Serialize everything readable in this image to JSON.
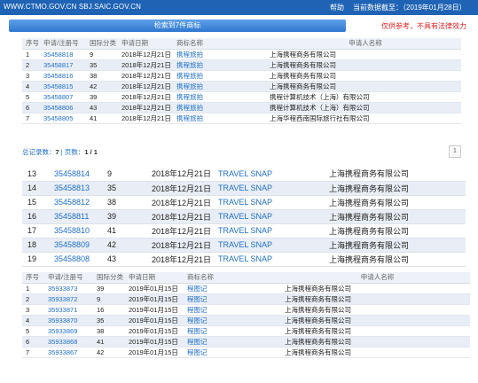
{
  "topbar": {
    "url": "WWW.CTMO.GOV.CN SBJ.SAIC.GOV.CN",
    "help": "帮助",
    "date": "当前数据截至：（2019年01月28日）"
  },
  "search_button": "检索到7件商标",
  "warning": "仅供参考，不具有法律效力",
  "table1": {
    "headers": [
      "序号",
      "申请/注册号",
      "国际分类",
      "申请日期",
      "商标名称",
      "申请人名称"
    ],
    "rows": [
      [
        "1",
        "35458818",
        "9",
        "2018年12月21日",
        "携程旅拍",
        "上海携程商务有限公司"
      ],
      [
        "2",
        "35458817",
        "35",
        "2018年12月21日",
        "携程旅拍",
        "上海携程商务有限公司"
      ],
      [
        "3",
        "35458816",
        "38",
        "2018年12月21日",
        "携程旅拍",
        "上海携程商务有限公司"
      ],
      [
        "4",
        "35458815",
        "42",
        "2018年12月21日",
        "携程旅拍",
        "上海携程商务有限公司"
      ],
      [
        "5",
        "35458807",
        "39",
        "2018年12月21日",
        "携程旅拍",
        "携程计算机技术（上海）有限公司"
      ],
      [
        "6",
        "35458806",
        "43",
        "2018年12月21日",
        "携程旅拍",
        "携程计算机技术（上海）有限公司"
      ],
      [
        "7",
        "35458805",
        "41",
        "2018年12月21日",
        "携程旅拍",
        "上海华程西南国际旅行社有限公司"
      ]
    ]
  },
  "summary": {
    "total_label": "总记录数：",
    "total": "7",
    "pages_label": "页数：",
    "pages": "1 / 1"
  },
  "pager": "1",
  "table2": {
    "rows": [
      [
        "13",
        "35458814",
        "9",
        "2018年12月21日",
        "TRAVEL SNAP",
        "上海携程商务有限公司"
      ],
      [
        "14",
        "35458813",
        "35",
        "2018年12月21日",
        "TRAVEL SNAP",
        "上海携程商务有限公司"
      ],
      [
        "15",
        "35458812",
        "38",
        "2018年12月21日",
        "TRAVEL SNAP",
        "上海携程商务有限公司"
      ],
      [
        "16",
        "35458811",
        "39",
        "2018年12月21日",
        "TRAVEL SNAP",
        "上海携程商务有限公司"
      ],
      [
        "17",
        "35458810",
        "41",
        "2018年12月21日",
        "TRAVEL SNAP",
        "上海携程商务有限公司"
      ],
      [
        "18",
        "35458809",
        "42",
        "2018年12月21日",
        "TRAVEL SNAP",
        "上海携程商务有限公司"
      ],
      [
        "19",
        "35458808",
        "43",
        "2018年12月21日",
        "TRAVEL SNAP",
        "上海携程商务有限公司"
      ]
    ]
  },
  "table3": {
    "headers": [
      "序号",
      "申请/注册号",
      "国际分类",
      "申请日期",
      "商标名称",
      "申请人名称"
    ],
    "rows": [
      [
        "1",
        "35933873",
        "39",
        "2019年01月15日",
        "程图记",
        "上海携程商务有限公司"
      ],
      [
        "2",
        "35933872",
        "9",
        "2019年01月15日",
        "程图记",
        "上海携程商务有限公司"
      ],
      [
        "3",
        "35933871",
        "16",
        "2019年01月15日",
        "程图记",
        "上海携程商务有限公司"
      ],
      [
        "4",
        "35933870",
        "35",
        "2019年01月15日",
        "程图记",
        "上海携程商务有限公司"
      ],
      [
        "5",
        "35933869",
        "38",
        "2019年01月15日",
        "程图记",
        "上海携程商务有限公司"
      ],
      [
        "6",
        "35933868",
        "41",
        "2019年01月15日",
        "程图记",
        "上海携程商务有限公司"
      ],
      [
        "7",
        "35933867",
        "42",
        "2019年01月15日",
        "程图记",
        "上海携程商务有限公司"
      ]
    ]
  }
}
